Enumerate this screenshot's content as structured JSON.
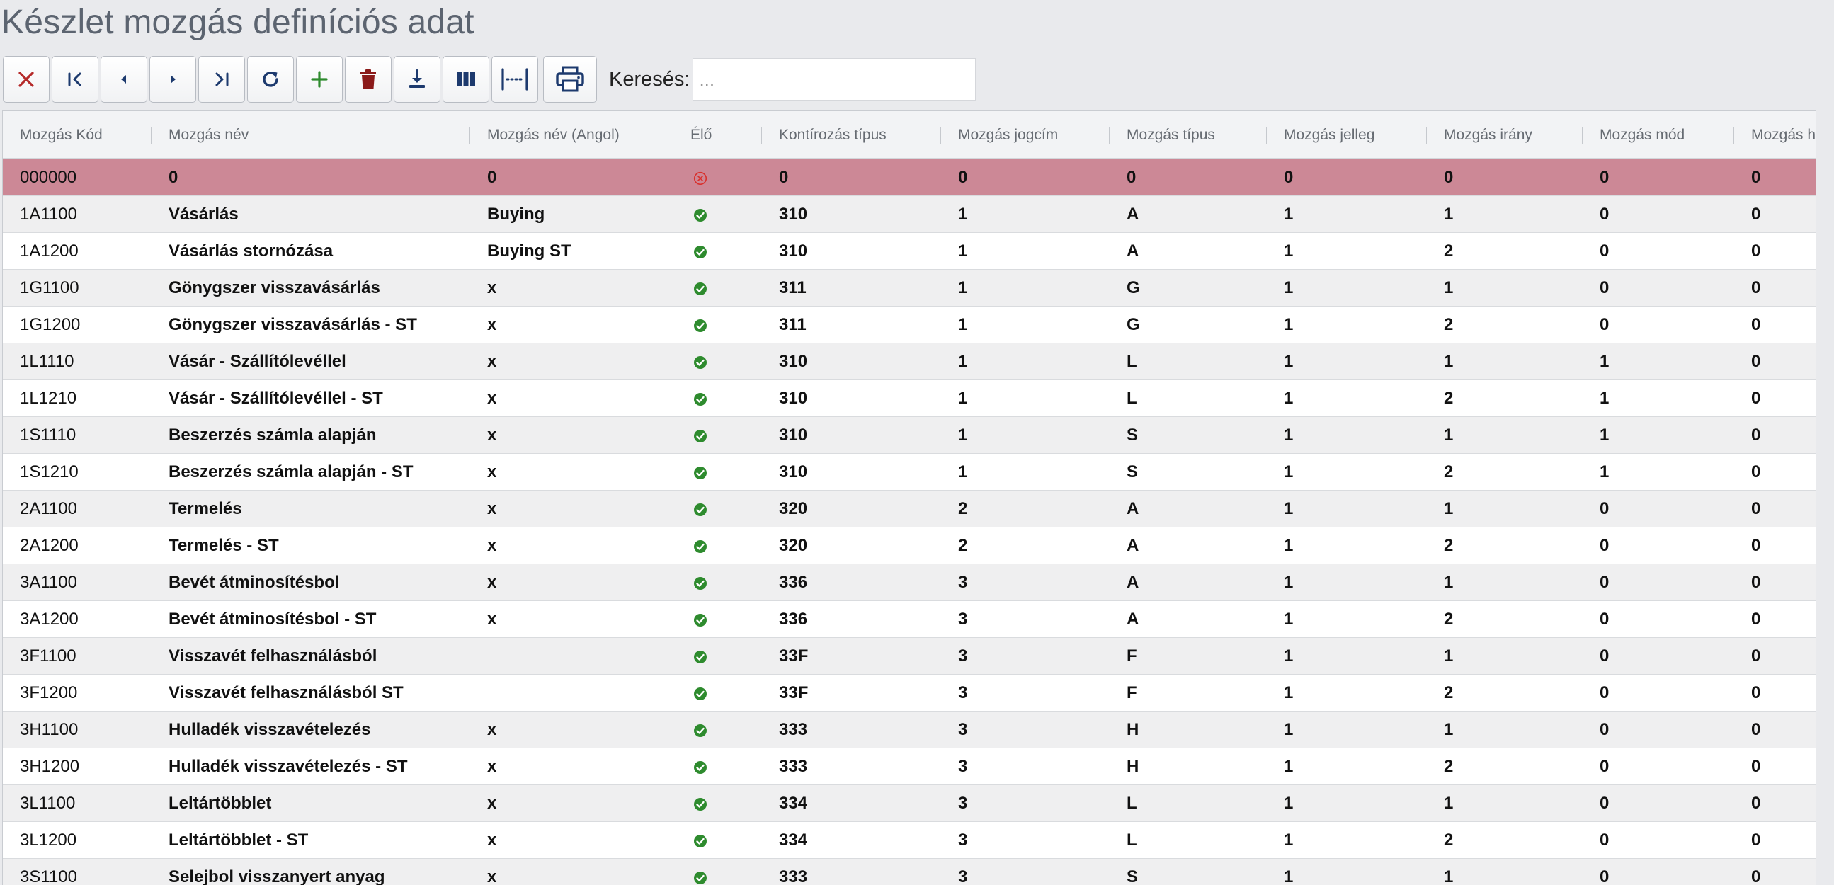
{
  "page": {
    "title": "Készlet mozgás definíciós adat"
  },
  "toolbar": {
    "buttons": [
      {
        "name": "close-button",
        "icon": "close-icon",
        "color": "#b52a2a"
      },
      {
        "name": "first-record-button",
        "icon": "first-page-icon",
        "color": "#1d3a6e"
      },
      {
        "name": "previous-record-button",
        "icon": "caret-left-icon",
        "color": "#1d3a6e"
      },
      {
        "name": "next-record-button",
        "icon": "caret-right-icon",
        "color": "#1d3a6e"
      },
      {
        "name": "last-record-button",
        "icon": "last-page-icon",
        "color": "#1d3a6e"
      },
      {
        "name": "refresh-button",
        "icon": "refresh-icon",
        "color": "#1d3a6e"
      },
      {
        "name": "add-button",
        "icon": "plus-icon",
        "color": "#2e8b2e"
      },
      {
        "name": "delete-button",
        "icon": "trash-icon",
        "color": "#8b1a1a"
      },
      {
        "name": "download-button",
        "icon": "download-icon",
        "color": "#1d3a6e"
      },
      {
        "name": "columns-button",
        "icon": "columns-icon",
        "color": "#1d3a6e"
      },
      {
        "name": "column-width-button",
        "icon": "fit-width-icon",
        "color": "#1d3a6e"
      },
      {
        "name": "print-button",
        "icon": "print-icon",
        "color": "#1d3a6e"
      }
    ],
    "search_label": "Keresés:",
    "search_placeholder": "...",
    "search_value": ""
  },
  "colors": {
    "selected_row": "#cc8896",
    "active_ok": "#2e8b2e",
    "inactive": "#d9302c"
  },
  "table": {
    "columns": [
      "Mozgás Kód",
      "Mozgás név",
      "Mozgás név (Angol)",
      "Élő",
      "Kontírozás típus",
      "Mozgás jogcím",
      "Mozgás típus",
      "Mozgás jelleg",
      "Mozgás irány",
      "Mozgás mód",
      "Mozgás h"
    ],
    "rows": [
      {
        "code": "000000",
        "name": "0",
        "name_en": "0",
        "active": false,
        "kontir": "0",
        "jogcim": "0",
        "tipus": "0",
        "jelleg": "0",
        "irany": "0",
        "mod": "0",
        "h": "0",
        "selected": true
      },
      {
        "code": "1A1100",
        "name": "Vásárlás",
        "name_en": "Buying",
        "active": true,
        "kontir": "310",
        "jogcim": "1",
        "tipus": "A",
        "jelleg": "1",
        "irany": "1",
        "mod": "0",
        "h": "0"
      },
      {
        "code": "1A1200",
        "name": "Vásárlás stornózása",
        "name_en": "Buying ST",
        "active": true,
        "kontir": "310",
        "jogcim": "1",
        "tipus": "A",
        "jelleg": "1",
        "irany": "2",
        "mod": "0",
        "h": "0"
      },
      {
        "code": "1G1100",
        "name": "Gönygszer visszavásárlás",
        "name_en": "x",
        "active": true,
        "kontir": "311",
        "jogcim": "1",
        "tipus": "G",
        "jelleg": "1",
        "irany": "1",
        "mod": "0",
        "h": "0"
      },
      {
        "code": "1G1200",
        "name": "Gönygszer visszavásárlás - ST",
        "name_en": "x",
        "active": true,
        "kontir": "311",
        "jogcim": "1",
        "tipus": "G",
        "jelleg": "1",
        "irany": "2",
        "mod": "0",
        "h": "0"
      },
      {
        "code": "1L1110",
        "name": "Vásár - Szállítólevéllel",
        "name_en": "x",
        "active": true,
        "kontir": "310",
        "jogcim": "1",
        "tipus": "L",
        "jelleg": "1",
        "irany": "1",
        "mod": "1",
        "h": "0"
      },
      {
        "code": "1L1210",
        "name": "Vásár - Szállítólevéllel - ST",
        "name_en": "x",
        "active": true,
        "kontir": "310",
        "jogcim": "1",
        "tipus": "L",
        "jelleg": "1",
        "irany": "2",
        "mod": "1",
        "h": "0"
      },
      {
        "code": "1S1110",
        "name": "Beszerzés számla alapján",
        "name_en": "x",
        "active": true,
        "kontir": "310",
        "jogcim": "1",
        "tipus": "S",
        "jelleg": "1",
        "irany": "1",
        "mod": "1",
        "h": "0"
      },
      {
        "code": "1S1210",
        "name": "Beszerzés számla alapján - ST",
        "name_en": "x",
        "active": true,
        "kontir": "310",
        "jogcim": "1",
        "tipus": "S",
        "jelleg": "1",
        "irany": "2",
        "mod": "1",
        "h": "0"
      },
      {
        "code": "2A1100",
        "name": "Termelés",
        "name_en": "x",
        "active": true,
        "kontir": "320",
        "jogcim": "2",
        "tipus": "A",
        "jelleg": "1",
        "irany": "1",
        "mod": "0",
        "h": "0"
      },
      {
        "code": "2A1200",
        "name": "Termelés - ST",
        "name_en": "x",
        "active": true,
        "kontir": "320",
        "jogcim": "2",
        "tipus": "A",
        "jelleg": "1",
        "irany": "2",
        "mod": "0",
        "h": "0"
      },
      {
        "code": "3A1100",
        "name": "Bevét átminosítésbol",
        "name_en": "x",
        "active": true,
        "kontir": "336",
        "jogcim": "3",
        "tipus": "A",
        "jelleg": "1",
        "irany": "1",
        "mod": "0",
        "h": "0"
      },
      {
        "code": "3A1200",
        "name": "Bevét átminosítésbol - ST",
        "name_en": "x",
        "active": true,
        "kontir": "336",
        "jogcim": "3",
        "tipus": "A",
        "jelleg": "1",
        "irany": "2",
        "mod": "0",
        "h": "0"
      },
      {
        "code": "3F1100",
        "name": "Visszavét felhasználásból",
        "name_en": "",
        "active": true,
        "kontir": "33F",
        "jogcim": "3",
        "tipus": "F",
        "jelleg": "1",
        "irany": "1",
        "mod": "0",
        "h": "0"
      },
      {
        "code": "3F1200",
        "name": "Visszavét felhasználásból ST",
        "name_en": "",
        "active": true,
        "kontir": "33F",
        "jogcim": "3",
        "tipus": "F",
        "jelleg": "1",
        "irany": "2",
        "mod": "0",
        "h": "0"
      },
      {
        "code": "3H1100",
        "name": "Hulladék visszavételezés",
        "name_en": "x",
        "active": true,
        "kontir": "333",
        "jogcim": "3",
        "tipus": "H",
        "jelleg": "1",
        "irany": "1",
        "mod": "0",
        "h": "0"
      },
      {
        "code": "3H1200",
        "name": "Hulladék visszavételezés - ST",
        "name_en": "x",
        "active": true,
        "kontir": "333",
        "jogcim": "3",
        "tipus": "H",
        "jelleg": "1",
        "irany": "2",
        "mod": "0",
        "h": "0"
      },
      {
        "code": "3L1100",
        "name": "Leltártöbblet",
        "name_en": "x",
        "active": true,
        "kontir": "334",
        "jogcim": "3",
        "tipus": "L",
        "jelleg": "1",
        "irany": "1",
        "mod": "0",
        "h": "0"
      },
      {
        "code": "3L1200",
        "name": "Leltártöbblet - ST",
        "name_en": "x",
        "active": true,
        "kontir": "334",
        "jogcim": "3",
        "tipus": "L",
        "jelleg": "1",
        "irany": "2",
        "mod": "0",
        "h": "0"
      },
      {
        "code": "3S1100",
        "name": "Selejbol visszanyert anyag",
        "name_en": "x",
        "active": true,
        "kontir": "333",
        "jogcim": "3",
        "tipus": "S",
        "jelleg": "1",
        "irany": "1",
        "mod": "0",
        "h": "0"
      }
    ]
  }
}
